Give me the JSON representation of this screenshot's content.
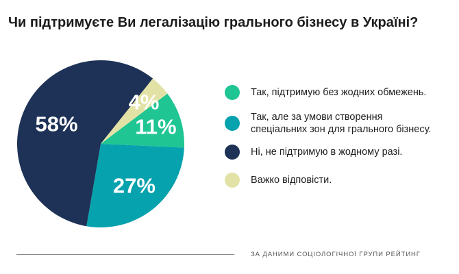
{
  "title": "Чи підтримуєте Ви легалізацію грального бізнесу в Україні?",
  "source": "ЗА ДАНИМИ СОЦІОЛОГІЧНОЇ ГРУПИ РЕЙТИНГ",
  "chart_data": {
    "type": "pie",
    "title": "Чи підтримуєте Ви легалізацію грального бізнесу в Україні?",
    "slices": [
      {
        "key": "support-no-restrictions",
        "label": "Так, підтримую без жодних обмежень.",
        "value": 11,
        "display": "11%",
        "color": "#1fc592"
      },
      {
        "key": "support-special-zones",
        "label": "Так, але за умови створення спеціальних зон для грального бізнесу.",
        "value": 27,
        "display": "27%",
        "color": "#06a2ad"
      },
      {
        "key": "do-not-support",
        "label": "Ні, не підтримую в жодному разі.",
        "value": 58,
        "display": "58%",
        "color": "#1d3256"
      },
      {
        "key": "hard-to-say",
        "label": "Важко відповісти.",
        "value": 4,
        "display": "4%",
        "color": "#e3e2a6"
      }
    ],
    "legend_position": "right"
  },
  "legend": [
    {
      "lines": [
        "Так, підтримую без жодних обмежень."
      ]
    },
    {
      "lines": [
        "Так, але за умови створення",
        "спеціальних зон для грального бізнесу."
      ]
    },
    {
      "lines": [
        "Ні, не підтримую в жодному разі."
      ]
    },
    {
      "lines": [
        "Важко відповісти."
      ]
    }
  ]
}
